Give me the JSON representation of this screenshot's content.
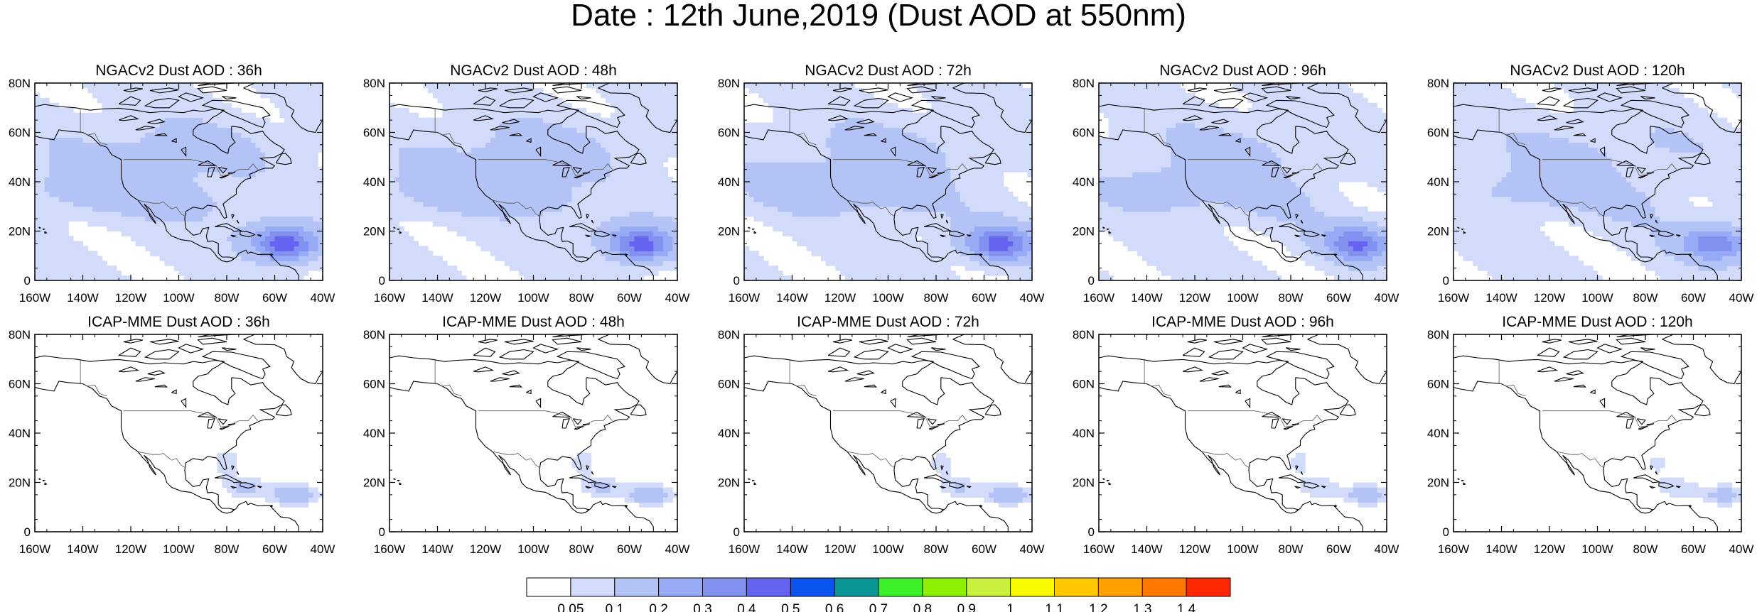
{
  "title": "Date : 12th June,2019 (Dust AOD at 550nm)",
  "rows": [
    {
      "model": "NGACv2",
      "panels": [
        {
          "label": "NGACv2 Dust AOD : 36h",
          "lead": 36
        },
        {
          "label": "NGACv2 Dust AOD : 48h",
          "lead": 48
        },
        {
          "label": "NGACv2 Dust AOD : 72h",
          "lead": 72
        },
        {
          "label": "NGACv2 Dust AOD : 96h",
          "lead": 96
        },
        {
          "label": "NGACv2 Dust AOD : 120h",
          "lead": 120
        }
      ]
    },
    {
      "model": "ICAP-MME",
      "panels": [
        {
          "label": "ICAP-MME Dust AOD : 36h",
          "lead": 36
        },
        {
          "label": "ICAP-MME Dust AOD : 48h",
          "lead": 48
        },
        {
          "label": "ICAP-MME Dust AOD : 72h",
          "lead": 72
        },
        {
          "label": "ICAP-MME Dust AOD : 96h",
          "lead": 96
        },
        {
          "label": "ICAP-MME Dust AOD : 120h",
          "lead": 120
        }
      ]
    }
  ],
  "lon_ticks": [
    "160W",
    "140W",
    "120W",
    "100W",
    "80W",
    "60W",
    "40W"
  ],
  "lat_ticks": [
    "0",
    "20N",
    "40N",
    "60N",
    "80N"
  ],
  "lon_range": [
    -160,
    -40
  ],
  "lat_range": [
    0,
    80
  ],
  "colorbar": {
    "colors": [
      "#ffffff",
      "#d2dcfa",
      "#b4c3f5",
      "#96aaf5",
      "#8291f0",
      "#6464f0",
      "#0a55f0",
      "#0a9696",
      "#3cf028",
      "#8cf000",
      "#c8f03c",
      "#fafa00",
      "#ffc800",
      "#ffa000",
      "#ff7800",
      "#ff2800"
    ],
    "labels": [
      "0.05",
      "0.1",
      "0.2",
      "0.3",
      "0.4",
      "0.5",
      "0.6",
      "0.7",
      "0.8",
      "0.9",
      "1",
      "1.1",
      "1.2",
      "1.3",
      "1.4"
    ]
  }
}
